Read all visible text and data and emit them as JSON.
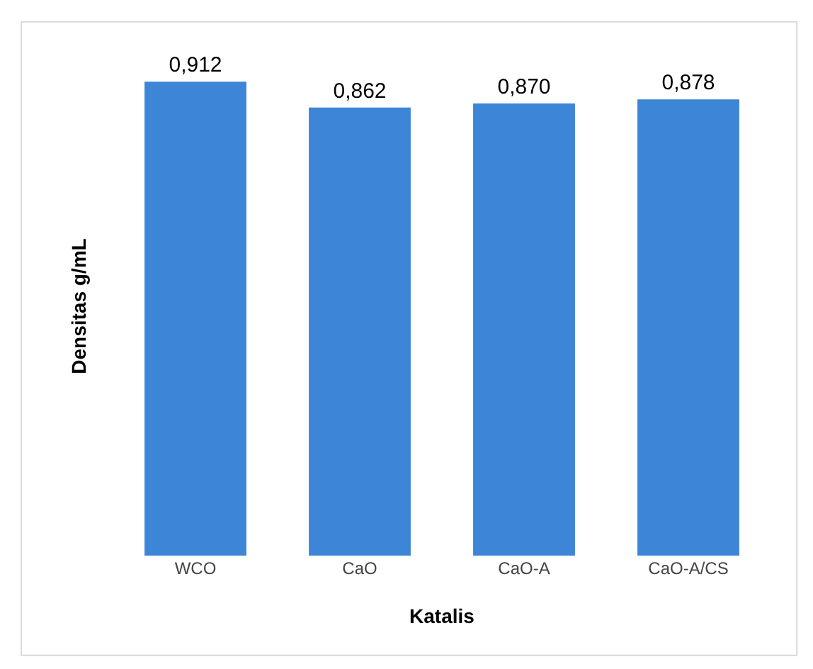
{
  "chart_data": {
    "type": "bar",
    "xlabel": "Katalis",
    "ylabel": "Densitas g/mL",
    "categories": [
      "WCO",
      "CaO",
      "CaO-A",
      "CaO-A/CS"
    ],
    "values": [
      0.912,
      0.862,
      0.87,
      0.878
    ],
    "value_labels": [
      "0,912",
      "0,862",
      "0,870",
      "0,878"
    ],
    "color": "#3d85d6",
    "grid": false,
    "tick_labels": "x"
  }
}
